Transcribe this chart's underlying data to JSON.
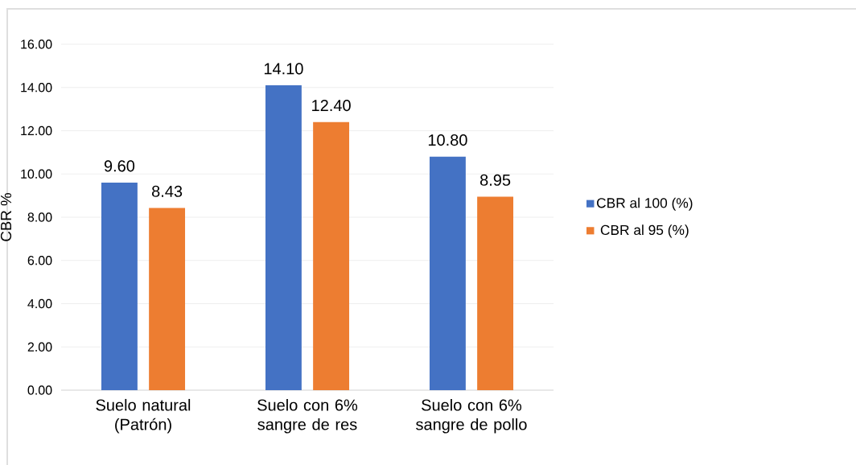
{
  "chart_data": {
    "type": "bar",
    "ylabel": "CBR %",
    "categories": [
      "Suelo natural (Patrón)",
      "Suelo con 6% sangre de res",
      "Suelo con 6% sangre de pollo"
    ],
    "series": [
      {
        "name": "CBR al 100 (%)",
        "color": "#4472c4",
        "values": [
          9.6,
          14.1,
          10.8
        ],
        "value_labels": [
          "9.60",
          "14.10",
          "10.80"
        ]
      },
      {
        "name": "CBR al 95 (%)",
        "color": "#ed7d31",
        "values": [
          8.43,
          12.4,
          8.95
        ],
        "value_labels": [
          "8.43",
          "12.40",
          "8.95"
        ]
      }
    ],
    "ylim": [
      0,
      16
    ],
    "yticks": [
      {
        "value": 0,
        "label": "0.00"
      },
      {
        "value": 2,
        "label": "2.00"
      },
      {
        "value": 4,
        "label": "4.00"
      },
      {
        "value": 6,
        "label": "6.00"
      },
      {
        "value": 8,
        "label": "8.00"
      },
      {
        "value": 10,
        "label": "10.00"
      },
      {
        "value": 12,
        "label": "12.00"
      },
      {
        "value": 14,
        "label": "14.00"
      },
      {
        "value": 16,
        "label": "16.00"
      }
    ],
    "grid": "y",
    "legend": "right"
  }
}
